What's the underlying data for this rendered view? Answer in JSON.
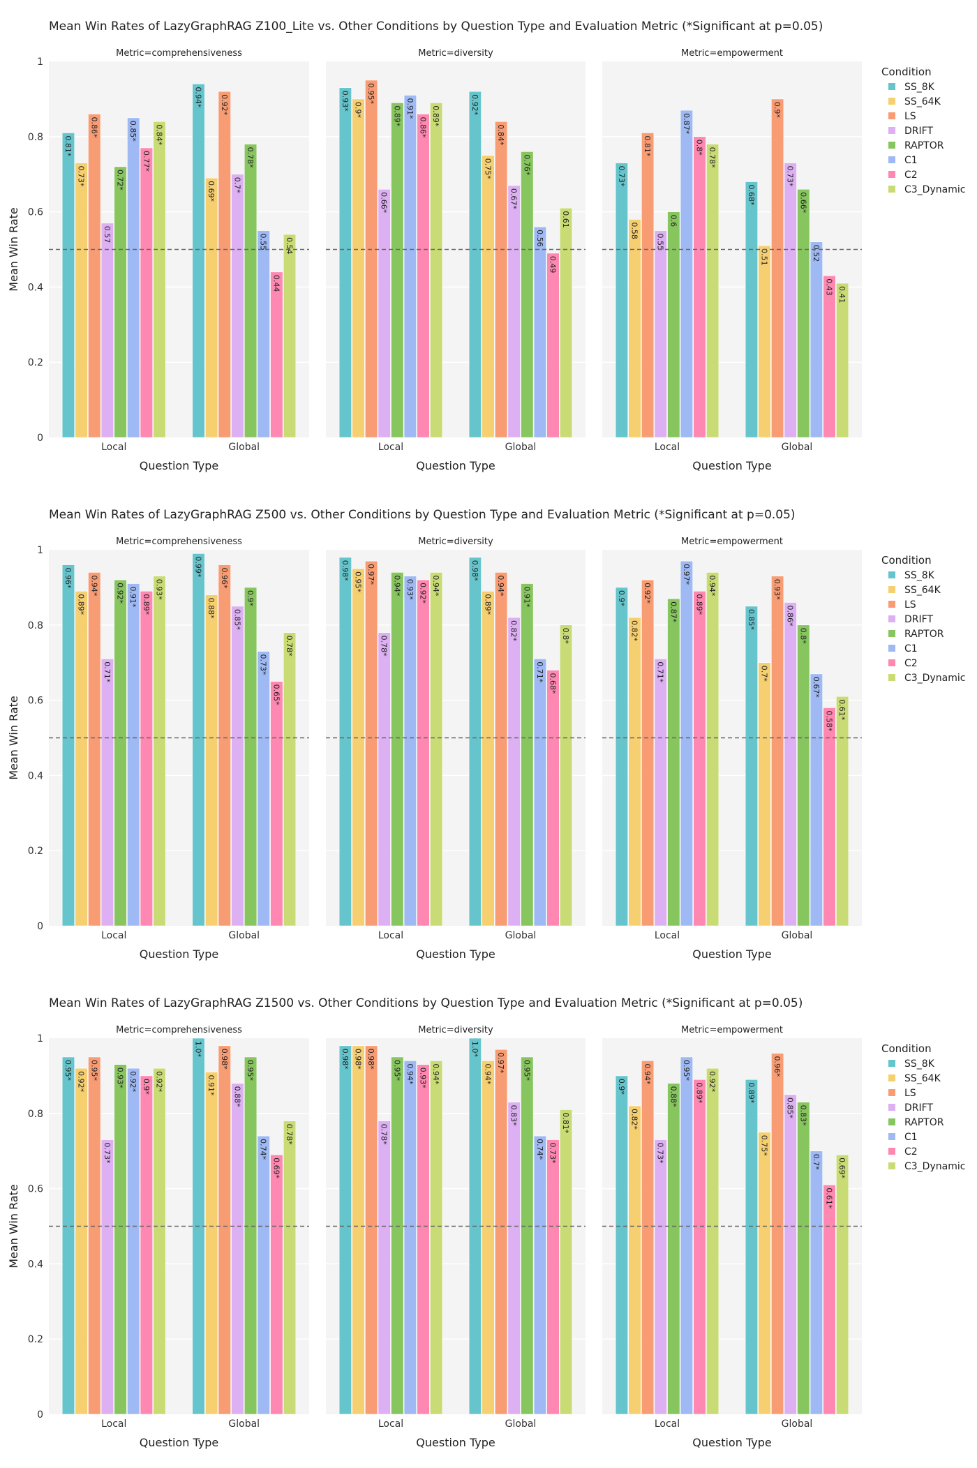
{
  "chart_data": [
    {
      "type": "bar",
      "title": "Mean Win Rates of LazyGraphRAG Z100_Lite vs. Other Conditions by Question Type and Evaluation Metric (*Significant at p=0.05)",
      "xlabel": "Question Type",
      "ylabel": "Mean Win Rate",
      "ylim": [
        0,
        1
      ],
      "yticks": [
        "0",
        "0.2",
        "0.4",
        "0.6",
        "0.8",
        "1"
      ],
      "reference_line": 0.5,
      "categories": [
        "Local",
        "Global"
      ],
      "panels": [
        {
          "subtitle": "Metric=comprehensiveness",
          "values": [
            [
              0.81,
              0.73,
              0.86,
              0.57,
              0.72,
              0.85,
              0.77,
              0.84
            ],
            [
              0.94,
              0.69,
              0.92,
              0.7,
              0.78,
              0.55,
              0.44,
              0.54
            ]
          ],
          "labels": [
            [
              "0.81*",
              "0.73*",
              "0.86*",
              "0.57",
              "0.72*",
              "0.85*",
              "0.77*",
              "0.84*"
            ],
            [
              "0.94*",
              "0.69*",
              "0.92*",
              "0.7*",
              "0.78*",
              "0.55",
              "0.44",
              "0.54"
            ]
          ]
        },
        {
          "subtitle": "Metric=diversity",
          "values": [
            [
              0.93,
              0.9,
              0.95,
              0.66,
              0.89,
              0.91,
              0.86,
              0.89
            ],
            [
              0.92,
              0.75,
              0.84,
              0.67,
              0.76,
              0.56,
              0.49,
              0.61
            ]
          ],
          "labels": [
            [
              "0.93*",
              "0.9*",
              "0.95*",
              "0.66*",
              "0.89*",
              "0.91*",
              "0.86*",
              "0.89*"
            ],
            [
              "0.92*",
              "0.75*",
              "0.84*",
              "0.67*",
              "0.76*",
              "0.56",
              "0.49",
              "0.61"
            ]
          ]
        },
        {
          "subtitle": "Metric=empowerment",
          "values": [
            [
              0.73,
              0.58,
              0.81,
              0.55,
              0.6,
              0.87,
              0.8,
              0.78
            ],
            [
              0.68,
              0.51,
              0.9,
              0.73,
              0.66,
              0.52,
              0.43,
              0.41
            ]
          ],
          "labels": [
            [
              "0.73*",
              "0.58",
              "0.81*",
              "0.55",
              "0.6",
              "0.87*",
              "0.8*",
              "0.78*"
            ],
            [
              "0.68*",
              "0.51",
              "0.9*",
              "0.73*",
              "0.66*",
              "0.52",
              "0.43",
              "0.41"
            ]
          ]
        }
      ]
    },
    {
      "type": "bar",
      "title": "Mean Win Rates of LazyGraphRAG Z500 vs. Other Conditions by Question Type and Evaluation Metric (*Significant at p=0.05)",
      "xlabel": "Question Type",
      "ylabel": "Mean Win Rate",
      "ylim": [
        0,
        1
      ],
      "yticks": [
        "0",
        "0.2",
        "0.4",
        "0.6",
        "0.8",
        "1"
      ],
      "reference_line": 0.5,
      "categories": [
        "Local",
        "Global"
      ],
      "panels": [
        {
          "subtitle": "Metric=comprehensiveness",
          "values": [
            [
              0.96,
              0.89,
              0.94,
              0.71,
              0.92,
              0.91,
              0.89,
              0.93
            ],
            [
              0.99,
              0.88,
              0.96,
              0.85,
              0.9,
              0.73,
              0.65,
              0.78
            ]
          ],
          "labels": [
            [
              "0.96*",
              "0.89*",
              "0.94*",
              "0.71*",
              "0.92*",
              "0.91*",
              "0.89*",
              "0.93*"
            ],
            [
              "0.99*",
              "0.88*",
              "0.96*",
              "0.85*",
              "0.9*",
              "0.73*",
              "0.65*",
              "0.78*"
            ]
          ]
        },
        {
          "subtitle": "Metric=diversity",
          "values": [
            [
              0.98,
              0.95,
              0.97,
              0.78,
              0.94,
              0.93,
              0.92,
              0.94
            ],
            [
              0.98,
              0.89,
              0.94,
              0.82,
              0.91,
              0.71,
              0.68,
              0.8
            ]
          ],
          "labels": [
            [
              "0.98*",
              "0.95*",
              "0.97*",
              "0.78*",
              "0.94*",
              "0.93*",
              "0.92*",
              "0.94*"
            ],
            [
              "0.98*",
              "0.89*",
              "0.94*",
              "0.82*",
              "0.91*",
              "0.71*",
              "0.68*",
              "0.8*"
            ]
          ]
        },
        {
          "subtitle": "Metric=empowerment",
          "values": [
            [
              0.9,
              0.82,
              0.92,
              0.71,
              0.87,
              0.97,
              0.89,
              0.94
            ],
            [
              0.85,
              0.7,
              0.93,
              0.86,
              0.8,
              0.67,
              0.58,
              0.61
            ]
          ],
          "labels": [
            [
              "0.9*",
              "0.82*",
              "0.92*",
              "0.71*",
              "0.87*",
              "0.97*",
              "0.89*",
              "0.94*"
            ],
            [
              "0.85*",
              "0.7*",
              "0.93*",
              "0.86*",
              "0.8*",
              "0.67*",
              "0.58*",
              "0.61*"
            ]
          ]
        }
      ]
    },
    {
      "type": "bar",
      "title": "Mean Win Rates of LazyGraphRAG Z1500 vs. Other Conditions by Question Type and Evaluation Metric (*Significant at p=0.05)",
      "xlabel": "Question Type",
      "ylabel": "Mean Win Rate",
      "ylim": [
        0,
        1
      ],
      "yticks": [
        "0",
        "0.2",
        "0.4",
        "0.6",
        "0.8",
        "1"
      ],
      "reference_line": 0.5,
      "categories": [
        "Local",
        "Global"
      ],
      "panels": [
        {
          "subtitle": "Metric=comprehensiveness",
          "values": [
            [
              0.95,
              0.92,
              0.95,
              0.73,
              0.93,
              0.92,
              0.9,
              0.92
            ],
            [
              1.0,
              0.91,
              0.98,
              0.88,
              0.95,
              0.74,
              0.69,
              0.78
            ]
          ],
          "labels": [
            [
              "0.95*",
              "0.92*",
              "0.95*",
              "0.73*",
              "0.93*",
              "0.92*",
              "0.9*",
              "0.92*"
            ],
            [
              "1.0*",
              "0.91*",
              "0.98*",
              "0.88*",
              "0.95*",
              "0.74*",
              "0.69*",
              "0.78*"
            ]
          ]
        },
        {
          "subtitle": "Metric=diversity",
          "values": [
            [
              0.98,
              0.98,
              0.98,
              0.78,
              0.95,
              0.94,
              0.93,
              0.94
            ],
            [
              1.0,
              0.94,
              0.97,
              0.83,
              0.95,
              0.74,
              0.73,
              0.81
            ]
          ],
          "labels": [
            [
              "0.98*",
              "0.98*",
              "0.98*",
              "0.78*",
              "0.95*",
              "0.94*",
              "0.93*",
              "0.94*"
            ],
            [
              "1.0*",
              "0.94*",
              "0.97*",
              "0.83*",
              "0.95*",
              "0.74*",
              "0.73*",
              "0.81*"
            ]
          ]
        },
        {
          "subtitle": "Metric=empowerment",
          "values": [
            [
              0.9,
              0.82,
              0.94,
              0.73,
              0.88,
              0.95,
              0.89,
              0.92
            ],
            [
              0.89,
              0.75,
              0.96,
              0.85,
              0.83,
              0.7,
              0.61,
              0.69
            ]
          ],
          "labels": [
            [
              "0.9*",
              "0.82*",
              "0.94*",
              "0.73*",
              "0.88*",
              "0.95*",
              "0.89*",
              "0.92*"
            ],
            [
              "0.89*",
              "0.75*",
              "0.96*",
              "0.85*",
              "0.83*",
              "0.7*",
              "0.61*",
              "0.69*"
            ]
          ]
        }
      ]
    }
  ],
  "legend": {
    "title": "Condition",
    "placement": "right",
    "items": [
      {
        "name": "SS_8K",
        "color": "#66C5CC"
      },
      {
        "name": "SS_64K",
        "color": "#F6CF71"
      },
      {
        "name": "LS",
        "color": "#F89C74"
      },
      {
        "name": "DRIFT",
        "color": "#DCB0F2"
      },
      {
        "name": "RAPTOR",
        "color": "#87C55F"
      },
      {
        "name": "C1",
        "color": "#9EB9F3"
      },
      {
        "name": "C2",
        "color": "#FE88B1"
      },
      {
        "name": "C3_Dynamic",
        "color": "#C9DB74"
      }
    ]
  },
  "colors": {
    "panel_bg": "#F4F4F4",
    "grid": "#FFFFFF",
    "reference_line": "#666666"
  }
}
